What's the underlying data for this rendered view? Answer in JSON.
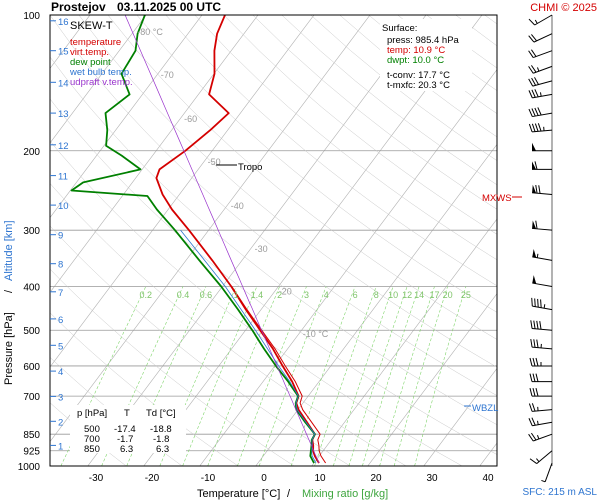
{
  "header": {
    "station": "Prostejov",
    "datetime": "03.11.2025 00 UTC",
    "credit": "CHMI © 2025"
  },
  "legend": {
    "title": "SKEW-T",
    "items": [
      {
        "label": "temperature",
        "color": "#d40000"
      },
      {
        "label": "virt.temp.",
        "color": "#d40000"
      },
      {
        "label": "dew point",
        "color": "#008000"
      },
      {
        "label": "wet bulb temp.",
        "color": "#2e75d0"
      },
      {
        "label": "udpraft v.temp.",
        "color": "#9933cc"
      }
    ]
  },
  "surface": {
    "title": "Surface:",
    "lines": [
      {
        "text": "press: 985.4 hPa",
        "color": "#000000"
      },
      {
        "text": "temp: 10.9 °C",
        "color": "#d40000"
      },
      {
        "text": "dwpt: 10.0 °C",
        "color": "#008000"
      },
      {
        "text": "t-conv: 17.7 °C",
        "color": "#000000"
      },
      {
        "text": "t-mxfc: 20.3 °C",
        "color": "#000000"
      }
    ]
  },
  "table": {
    "headers": [
      "p [hPa]",
      "T",
      "Td [°C]"
    ],
    "rows": [
      [
        "500",
        "-17.4",
        "-18.8"
      ],
      [
        "700",
        "-1.7",
        "-1.8"
      ],
      [
        "850",
        "6.3",
        "6.3"
      ]
    ]
  },
  "annotations": {
    "tropo": "Tropo",
    "mxws": "MXWS",
    "wbzl": "WBZL",
    "sfc": "SFC: 215 m ASL"
  },
  "colors": {
    "temperature": "#d40000",
    "dewpoint": "#008000",
    "wetbulb": "#2e75d0",
    "mixing": "#7fd46a",
    "isotherm": "#b0b0b0",
    "altitude_axis": "#2e75d0"
  },
  "chart_data": {
    "type": "line",
    "xlabel": "Temperature [°C]",
    "xlabel2": "Mixing ratio [g/kg]",
    "ylabel": "Pressure [hPa]",
    "ylabel2": "Altitude [km]",
    "x_ticks": [
      -30,
      -20,
      -10,
      0,
      10,
      20,
      30,
      40
    ],
    "y_ticks": [
      100,
      200,
      300,
      400,
      500,
      600,
      700,
      850,
      925,
      1000
    ],
    "altitude_km": [
      1,
      2,
      3,
      4,
      5,
      6,
      7,
      8,
      9,
      10,
      11,
      12,
      13,
      14,
      15,
      16
    ],
    "altitude_pressure_hpa": [
      900,
      796,
      701,
      616,
      540,
      472,
      411,
      356,
      307,
      264,
      227,
      194,
      165,
      141,
      120,
      103
    ],
    "isotherm_labels": [
      "-80 °C",
      "-70",
      "-60",
      "-50",
      "-40",
      "-30",
      "-20",
      "-10 °C"
    ],
    "mixing_ratio_labels": [
      "0.2",
      "0.4",
      "0.6",
      "1",
      "1.4",
      "2",
      "3",
      "4",
      "6",
      "8",
      "10",
      "12",
      "14",
      "17",
      "20",
      "25"
    ],
    "tropopause_hpa": 220,
    "mxws_hpa": 255,
    "wbzl_hpa": 720,
    "series": [
      {
        "name": "temperature",
        "pressure_hpa": [
          985,
          950,
          925,
          900,
          875,
          850,
          800,
          750,
          725,
          700,
          650,
          600,
          550,
          500,
          450,
          400,
          350,
          300,
          270,
          250,
          230,
          220,
          200,
          180,
          165,
          150,
          135,
          120,
          110,
          100
        ],
        "temp_c": [
          10.9,
          9.2,
          8.2,
          7.5,
          6.6,
          6.3,
          3.3,
          0.1,
          -1.2,
          -1.7,
          -4.8,
          -8.6,
          -12.6,
          -17.4,
          -22.7,
          -28.4,
          -35.3,
          -43.5,
          -49.3,
          -53.0,
          -56.3,
          -56.9,
          -54.8,
          -53.1,
          -52.1,
          -58.1,
          -59.9,
          -63.0,
          -64.8,
          -65.9
        ]
      },
      {
        "name": "dew point",
        "pressure_hpa": [
          985,
          950,
          925,
          900,
          875,
          850,
          800,
          750,
          725,
          700,
          650,
          600,
          550,
          500,
          450,
          400,
          350,
          300,
          270,
          252,
          245,
          235,
          220,
          205,
          195,
          180,
          165,
          150,
          135,
          120,
          110,
          100
        ],
        "temp_c": [
          10.0,
          8.4,
          7.8,
          7.2,
          6.5,
          6.3,
          3.0,
          -0.3,
          -1.3,
          -1.8,
          -5.5,
          -9.8,
          -14.2,
          -18.8,
          -24.1,
          -30.2,
          -37.6,
          -46.0,
          -52.0,
          -55.5,
          -69.8,
          -68.8,
          -60.3,
          -65.5,
          -69.6,
          -71.5,
          -74.1,
          -72.3,
          -76.5,
          -77.1,
          -79.0,
          -80.2
        ]
      }
    ],
    "wind_barbs": {
      "pressure_hpa": [
        985,
        925,
        850,
        800,
        750,
        700,
        650,
        600,
        550,
        500,
        450,
        400,
        350,
        300,
        250,
        220,
        200,
        180,
        165,
        150,
        140,
        130,
        120,
        110,
        100
      ],
      "direction_deg": [
        200,
        230,
        250,
        260,
        265,
        270,
        270,
        270,
        275,
        275,
        280,
        280,
        280,
        275,
        275,
        270,
        270,
        265,
        260,
        260,
        255,
        250,
        250,
        245,
        240
      ],
      "speed_kt": [
        5,
        15,
        25,
        25,
        25,
        30,
        30,
        35,
        35,
        40,
        45,
        50,
        55,
        60,
        70,
        60,
        50,
        45,
        40,
        35,
        30,
        25,
        20,
        20,
        15
      ]
    }
  }
}
